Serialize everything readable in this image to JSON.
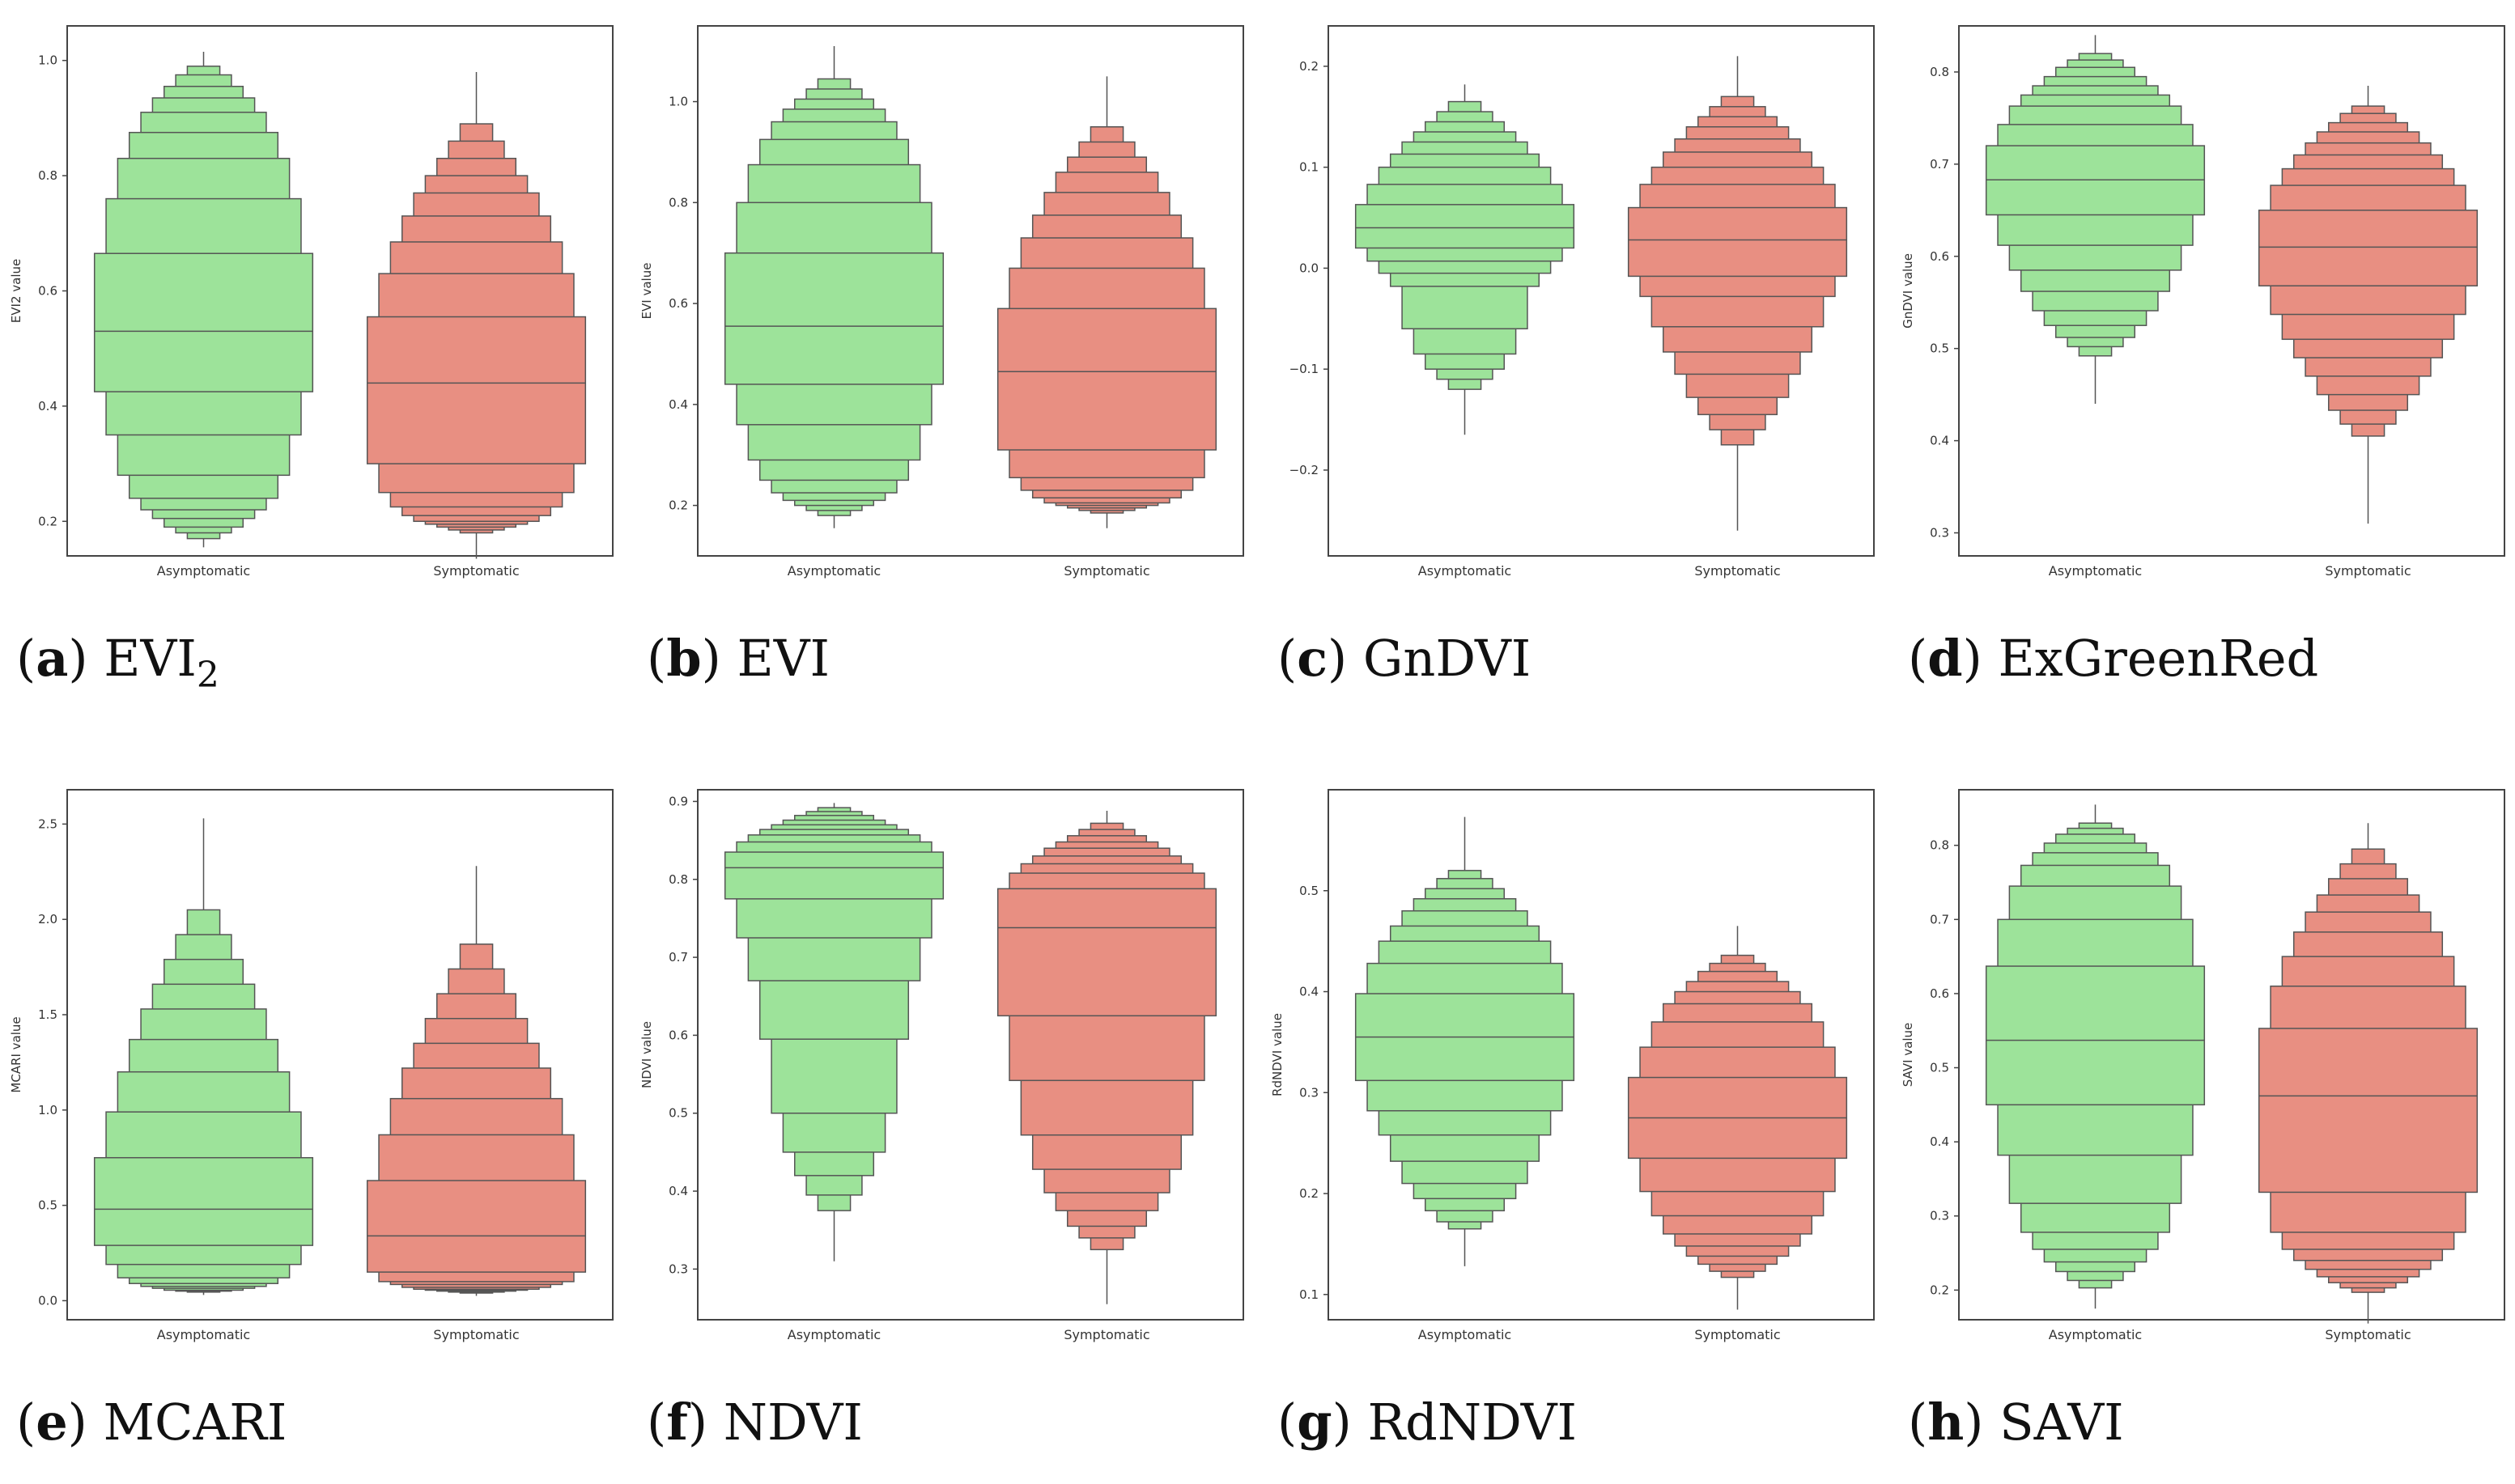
{
  "colors": {
    "asymptomatic": "#9de39a",
    "symptomatic": "#e88f82",
    "edge": "#555555"
  },
  "chart_data": [
    {
      "type": "boxen",
      "letter": "a",
      "name": "EVI",
      "sub": "2",
      "ylabel": "EVI2 value",
      "ylim": [
        0.14,
        1.06
      ],
      "yticks": [
        "0.2",
        "0.4",
        "0.6",
        "0.8",
        "1.0"
      ],
      "categories": [
        "Asymptomatic",
        "Symptomatic"
      ],
      "series": [
        {
          "name": "Asymptomatic",
          "median": 0.53,
          "levels": [
            [
              0.425,
              0.665
            ],
            [
              0.35,
              0.76
            ],
            [
              0.28,
              0.83
            ],
            [
              0.24,
              0.875
            ],
            [
              0.22,
              0.91
            ],
            [
              0.205,
              0.935
            ],
            [
              0.19,
              0.955
            ],
            [
              0.18,
              0.975
            ],
            [
              0.17,
              0.99
            ]
          ],
          "whisker": [
            0.155,
            1.015
          ]
        },
        {
          "name": "Symptomatic",
          "median": 0.44,
          "levels": [
            [
              0.3,
              0.555
            ],
            [
              0.25,
              0.63
            ],
            [
              0.225,
              0.685
            ],
            [
              0.21,
              0.73
            ],
            [
              0.2,
              0.77
            ],
            [
              0.195,
              0.8
            ],
            [
              0.19,
              0.83
            ],
            [
              0.185,
              0.86
            ],
            [
              0.18,
              0.89
            ]
          ],
          "whisker": [
            0.135,
            0.98
          ]
        }
      ]
    },
    {
      "type": "boxen",
      "letter": "b",
      "name": "EVI",
      "sub": "",
      "ylabel": "EVI value",
      "ylim": [
        0.1,
        1.15
      ],
      "yticks": [
        "0.2",
        "0.4",
        "0.6",
        "0.8",
        "1.0"
      ],
      "categories": [
        "Asymptomatic",
        "Symptomatic"
      ],
      "series": [
        {
          "name": "Asymptomatic",
          "median": 0.555,
          "levels": [
            [
              0.44,
              0.7
            ],
            [
              0.36,
              0.8
            ],
            [
              0.29,
              0.875
            ],
            [
              0.25,
              0.925
            ],
            [
              0.225,
              0.96
            ],
            [
              0.21,
              0.985
            ],
            [
              0.2,
              1.005
            ],
            [
              0.19,
              1.025
            ],
            [
              0.18,
              1.045
            ]
          ],
          "whisker": [
            0.155,
            1.11
          ]
        },
        {
          "name": "Symptomatic",
          "median": 0.465,
          "levels": [
            [
              0.31,
              0.59
            ],
            [
              0.255,
              0.67
            ],
            [
              0.23,
              0.73
            ],
            [
              0.215,
              0.775
            ],
            [
              0.205,
              0.82
            ],
            [
              0.2,
              0.86
            ],
            [
              0.195,
              0.89
            ],
            [
              0.19,
              0.92
            ],
            [
              0.185,
              0.95
            ]
          ],
          "whisker": [
            0.155,
            1.05
          ]
        }
      ]
    },
    {
      "type": "boxen",
      "letter": "c",
      "name": "GnDVI",
      "sub": "",
      "ylabel": "",
      "ylim": [
        -0.285,
        0.24
      ],
      "yticks": [
        "−0.2",
        "−0.1",
        "0.0",
        "0.1",
        "0.2"
      ],
      "categories": [
        "Asymptomatic",
        "Symptomatic"
      ],
      "series": [
        {
          "name": "Asymptomatic",
          "median": 0.04,
          "levels": [
            [
              0.02,
              0.063
            ],
            [
              0.007,
              0.083
            ],
            [
              -0.005,
              0.1
            ],
            [
              -0.018,
              0.113
            ],
            [
              -0.06,
              0.125
            ],
            [
              -0.085,
              0.135
            ],
            [
              -0.1,
              0.145
            ],
            [
              -0.11,
              0.155
            ],
            [
              -0.12,
              0.165
            ]
          ],
          "whisker": [
            -0.165,
            0.182
          ]
        },
        {
          "name": "Symptomatic",
          "median": 0.028,
          "levels": [
            [
              -0.008,
              0.06
            ],
            [
              -0.028,
              0.083
            ],
            [
              -0.058,
              0.1
            ],
            [
              -0.083,
              0.115
            ],
            [
              -0.105,
              0.128
            ],
            [
              -0.128,
              0.14
            ],
            [
              -0.145,
              0.15
            ],
            [
              -0.16,
              0.16
            ],
            [
              -0.175,
              0.17
            ]
          ],
          "whisker": [
            -0.26,
            0.21
          ]
        }
      ]
    },
    {
      "type": "boxen",
      "letter": "d",
      "name": "ExGreenRed",
      "sub": "",
      "ylabel": "GnDVI value",
      "ylim": [
        0.275,
        0.85
      ],
      "yticks": [
        "0.3",
        "0.4",
        "0.5",
        "0.6",
        "0.7",
        "0.8"
      ],
      "tick_values": [
        0.3,
        0.4,
        0.5,
        0.6,
        0.7,
        0.8
      ],
      "categories": [
        "Asymptomatic",
        "Symptomatic"
      ],
      "series": [
        {
          "name": "Asymptomatic",
          "median": 0.683,
          "levels": [
            [
              0.645,
              0.72
            ],
            [
              0.612,
              0.743
            ],
            [
              0.585,
              0.763
            ],
            [
              0.562,
              0.775
            ],
            [
              0.541,
              0.785
            ],
            [
              0.525,
              0.795
            ],
            [
              0.512,
              0.805
            ],
            [
              0.502,
              0.813
            ],
            [
              0.492,
              0.82
            ]
          ],
          "whisker": [
            0.44,
            0.84
          ]
        },
        {
          "name": "Symptomatic",
          "median": 0.61,
          "levels": [
            [
              0.568,
              0.65
            ],
            [
              0.537,
              0.677
            ],
            [
              0.51,
              0.695
            ],
            [
              0.49,
              0.71
            ],
            [
              0.47,
              0.723
            ],
            [
              0.45,
              0.735
            ],
            [
              0.433,
              0.745
            ],
            [
              0.418,
              0.755
            ],
            [
              0.405,
              0.763
            ]
          ],
          "whisker": [
            0.31,
            0.785
          ]
        }
      ]
    },
    {
      "type": "boxen",
      "letter": "e",
      "name": "MCARI",
      "sub": "",
      "ylabel": "MCARI value",
      "ylim": [
        -0.1,
        2.68
      ],
      "yticks": [
        "0.0",
        "0.5",
        "1.0",
        "1.5",
        "2.0",
        "2.5"
      ],
      "categories": [
        "Asymptomatic",
        "Symptomatic"
      ],
      "series": [
        {
          "name": "Asymptomatic",
          "median": 0.48,
          "levels": [
            [
              0.29,
              0.75
            ],
            [
              0.19,
              0.99
            ],
            [
              0.12,
              1.2
            ],
            [
              0.09,
              1.37
            ],
            [
              0.075,
              1.53
            ],
            [
              0.065,
              1.66
            ],
            [
              0.055,
              1.79
            ],
            [
              0.05,
              1.92
            ],
            [
              0.045,
              2.05
            ]
          ],
          "whisker": [
            0.03,
            2.53
          ]
        },
        {
          "name": "Symptomatic",
          "median": 0.34,
          "levels": [
            [
              0.15,
              0.63
            ],
            [
              0.1,
              0.87
            ],
            [
              0.085,
              1.06
            ],
            [
              0.07,
              1.22
            ],
            [
              0.06,
              1.35
            ],
            [
              0.055,
              1.48
            ],
            [
              0.05,
              1.61
            ],
            [
              0.045,
              1.74
            ],
            [
              0.04,
              1.87
            ]
          ],
          "whisker": [
            0.025,
            2.28
          ]
        }
      ]
    },
    {
      "type": "boxen",
      "letter": "f",
      "name": "NDVI",
      "sub": "",
      "ylabel": "NDVI value",
      "ylim": [
        0.235,
        0.915
      ],
      "yticks": [
        "0.3",
        "0.4",
        "0.5",
        "0.6",
        "0.7",
        "0.8",
        "0.9"
      ],
      "categories": [
        "Asymptomatic",
        "Symptomatic"
      ],
      "series": [
        {
          "name": "Asymptomatic",
          "median": 0.815,
          "levels": [
            [
              0.775,
              0.835
            ],
            [
              0.725,
              0.848
            ],
            [
              0.67,
              0.857
            ],
            [
              0.595,
              0.864
            ],
            [
              0.5,
              0.87
            ],
            [
              0.45,
              0.876
            ],
            [
              0.42,
              0.882
            ],
            [
              0.395,
              0.887
            ],
            [
              0.375,
              0.892
            ]
          ],
          "whisker": [
            0.31,
            0.898
          ]
        },
        {
          "name": "Symptomatic",
          "median": 0.738,
          "levels": [
            [
              0.625,
              0.788
            ],
            [
              0.542,
              0.808
            ],
            [
              0.472,
              0.82
            ],
            [
              0.428,
              0.83
            ],
            [
              0.398,
              0.84
            ],
            [
              0.375,
              0.848
            ],
            [
              0.355,
              0.856
            ],
            [
              0.34,
              0.864
            ],
            [
              0.325,
              0.872
            ]
          ],
          "whisker": [
            0.255,
            0.888
          ]
        }
      ]
    },
    {
      "type": "boxen",
      "letter": "g",
      "name": "RdNDVI",
      "sub": "",
      "ylabel": "RdNDVI value",
      "ylim": [
        0.075,
        0.6
      ],
      "yticks": [
        "0.1",
        "0.2",
        "0.3",
        "0.4",
        "0.5"
      ],
      "categories": [
        "Asymptomatic",
        "Symptomatic"
      ],
      "series": [
        {
          "name": "Asymptomatic",
          "median": 0.355,
          "levels": [
            [
              0.312,
              0.398
            ],
            [
              0.282,
              0.428
            ],
            [
              0.258,
              0.45
            ],
            [
              0.232,
              0.465
            ],
            [
              0.21,
              0.48
            ],
            [
              0.195,
              0.492
            ],
            [
              0.183,
              0.502
            ],
            [
              0.172,
              0.512
            ],
            [
              0.165,
              0.52
            ]
          ],
          "whisker": [
            0.128,
            0.573
          ]
        },
        {
          "name": "Symptomatic",
          "median": 0.275,
          "levels": [
            [
              0.235,
              0.315
            ],
            [
              0.202,
              0.345
            ],
            [
              0.178,
              0.37
            ],
            [
              0.16,
              0.388
            ],
            [
              0.148,
              0.4
            ],
            [
              0.138,
              0.41
            ],
            [
              0.13,
              0.42
            ],
            [
              0.123,
              0.428
            ],
            [
              0.117,
              0.436
            ]
          ],
          "whisker": [
            0.085,
            0.465
          ]
        }
      ]
    },
    {
      "type": "boxen",
      "letter": "h",
      "name": "SAVI",
      "sub": "",
      "ylabel": "SAVI value",
      "ylim": [
        0.16,
        0.875
      ],
      "yticks": [
        "0.2",
        "0.3",
        "0.4",
        "0.5",
        "0.6",
        "0.7",
        "0.8"
      ],
      "categories": [
        "Asymptomatic",
        "Symptomatic"
      ],
      "series": [
        {
          "name": "Asymptomatic",
          "median": 0.537,
          "levels": [
            [
              0.45,
              0.637
            ],
            [
              0.382,
              0.7
            ],
            [
              0.317,
              0.745
            ],
            [
              0.278,
              0.773
            ],
            [
              0.255,
              0.79
            ],
            [
              0.238,
              0.803
            ],
            [
              0.225,
              0.815
            ],
            [
              0.213,
              0.823
            ],
            [
              0.203,
              0.83
            ]
          ],
          "whisker": [
            0.175,
            0.855
          ]
        },
        {
          "name": "Symptomatic",
          "median": 0.462,
          "levels": [
            [
              0.332,
              0.553
            ],
            [
              0.278,
              0.61
            ],
            [
              0.255,
              0.65
            ],
            [
              0.24,
              0.683
            ],
            [
              0.228,
              0.71
            ],
            [
              0.218,
              0.733
            ],
            [
              0.21,
              0.755
            ],
            [
              0.203,
              0.775
            ],
            [
              0.197,
              0.795
            ]
          ],
          "whisker": [
            0.155,
            0.83
          ]
        }
      ]
    }
  ]
}
